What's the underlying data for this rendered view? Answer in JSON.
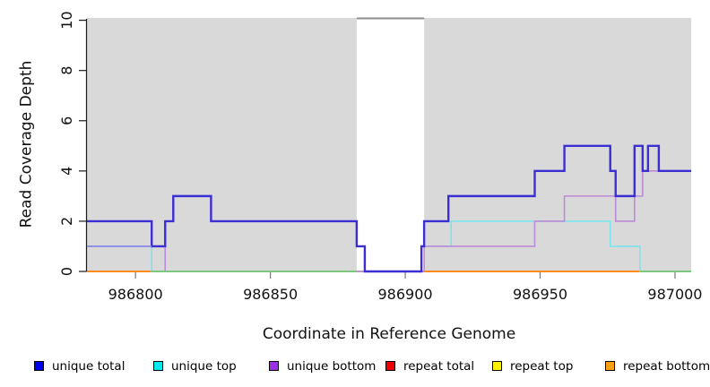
{
  "chart_data": {
    "type": "line",
    "line_style": "step-post",
    "title": "",
    "xlabel": "Coordinate in Reference Genome",
    "ylabel": "Read Coverage Depth",
    "xlim": [
      986782,
      987006
    ],
    "ylim": [
      0,
      10
    ],
    "x_ticks": [
      986800,
      986850,
      986900,
      986950,
      987000
    ],
    "x_tick_labels": [
      "986800",
      "986850",
      "986900",
      "986950",
      "987000"
    ],
    "y_ticks": [
      0,
      2,
      4,
      6,
      8,
      10
    ],
    "y_tick_labels": [
      "0",
      "2",
      "4",
      "6",
      "8",
      "10"
    ],
    "grid": false,
    "panel_bg": "#d9d9d9",
    "gap_region": {
      "x_start": 986882,
      "x_end": 986907,
      "fill": "#ffffff",
      "top_border": "#8e8e8e"
    },
    "legend_position": "bottom",
    "legend_item_x": [
      38,
      171,
      300,
      430,
      549,
      675
    ],
    "series": [
      {
        "name": "unique total",
        "swatch": "#0000f0",
        "line": "#3b2fd4",
        "width": 2.4,
        "steps": [
          [
            986782,
            2
          ],
          [
            986806,
            1
          ],
          [
            986811,
            2
          ],
          [
            986814,
            3
          ],
          [
            986828,
            2
          ],
          [
            986882,
            1
          ],
          [
            986885,
            0
          ],
          [
            986906,
            1
          ],
          [
            986907,
            2
          ],
          [
            986916,
            3
          ],
          [
            986948,
            4
          ],
          [
            986959,
            5
          ],
          [
            986976,
            4
          ],
          [
            986978,
            3
          ],
          [
            986985,
            5
          ],
          [
            986988,
            4
          ],
          [
            986990,
            5
          ],
          [
            986994,
            4
          ]
        ]
      },
      {
        "name": "unique top",
        "swatch": "#00eaf0",
        "line": "#7ae6ec",
        "width": 1.6,
        "steps": [
          [
            986782,
            1
          ],
          [
            986806,
            0
          ],
          [
            986906,
            1
          ],
          [
            986917,
            2
          ],
          [
            986976,
            1
          ],
          [
            986987,
            0
          ]
        ]
      },
      {
        "name": "unique bottom",
        "swatch": "#9d2fe8",
        "line": "#bd8ad8",
        "width": 1.6,
        "steps": [
          [
            986782,
            1
          ],
          [
            986811,
            0
          ],
          [
            986907,
            1
          ],
          [
            986948,
            2
          ],
          [
            986959,
            3
          ],
          [
            986978,
            2
          ],
          [
            986985,
            3
          ],
          [
            986988,
            4
          ]
        ]
      },
      {
        "name": "repeat total",
        "swatch": "#f00000",
        "line": "#e03030",
        "width": 1.8,
        "steps": [
          [
            986782,
            0
          ]
        ]
      },
      {
        "name": "repeat top",
        "swatch": "#fff200",
        "line": "#f2e83c",
        "width": 1.8,
        "steps": [
          [
            986782,
            0
          ]
        ]
      },
      {
        "name": "repeat bottom",
        "swatch": "#ffa010",
        "line": "#ff8c1c",
        "width": 2,
        "steps": [
          [
            986782,
            0
          ]
        ]
      }
    ],
    "draw_order": [
      "repeat total",
      "repeat top",
      "repeat bottom",
      "unique top",
      "unique bottom",
      "unique total"
    ],
    "overlay_segments": [
      {
        "color": "#7cc87c",
        "width": 2,
        "y": 0,
        "x_start": 986806,
        "x_end": 986882
      },
      {
        "color": "#7cc87c",
        "width": 2,
        "y": 0,
        "x_start": 986987,
        "x_end": 987006
      },
      {
        "color": "#8a8ae8",
        "width": 1.6,
        "y": 1,
        "x_start": 986782,
        "x_end": 986806
      }
    ]
  }
}
